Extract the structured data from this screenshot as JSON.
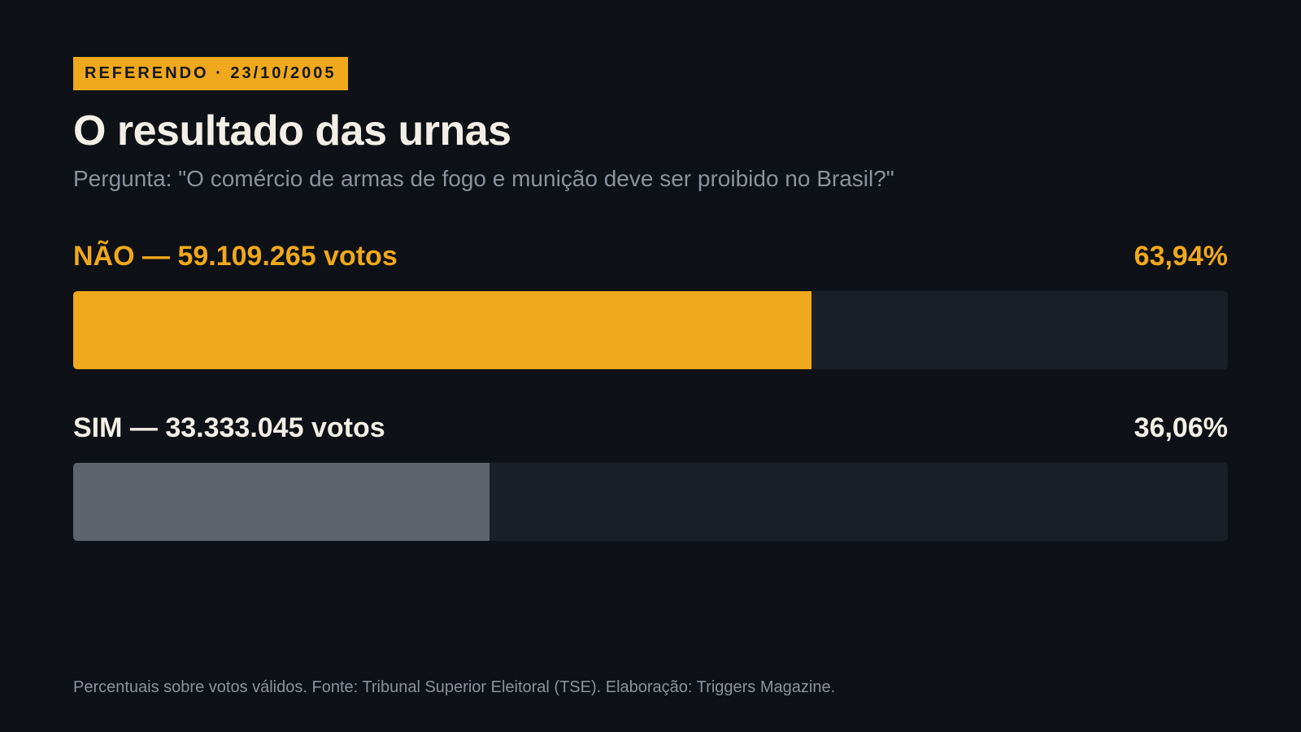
{
  "header": {
    "tag": "REFERENDO · 23/10/2005",
    "title": "O resultado das urnas",
    "subtitle": "Pergunta: \"O comércio de armas de fogo e munição deve ser proibido no Brasil?\""
  },
  "chart_data": {
    "type": "bar",
    "orientation": "horizontal",
    "xlim": [
      0,
      100
    ],
    "categories": [
      "NÃO",
      "SIM"
    ],
    "values": [
      63.94,
      36.06
    ],
    "votes": [
      59109265,
      33333045
    ],
    "labels": [
      "NÃO — 59.109.265 votos",
      "SIM — 33.333.045 votos"
    ],
    "percent_labels": [
      "63,94%",
      "36,06%"
    ],
    "colors": [
      "#f0a81c",
      "#5e646c"
    ],
    "label_colors": [
      "#f0a81c",
      "#f3efe6"
    ]
  },
  "footer": {
    "note": "Percentuais sobre votos válidos. Fonte: Tribunal Superior Eleitoral (TSE). Elaboração: Triggers Magazine."
  }
}
